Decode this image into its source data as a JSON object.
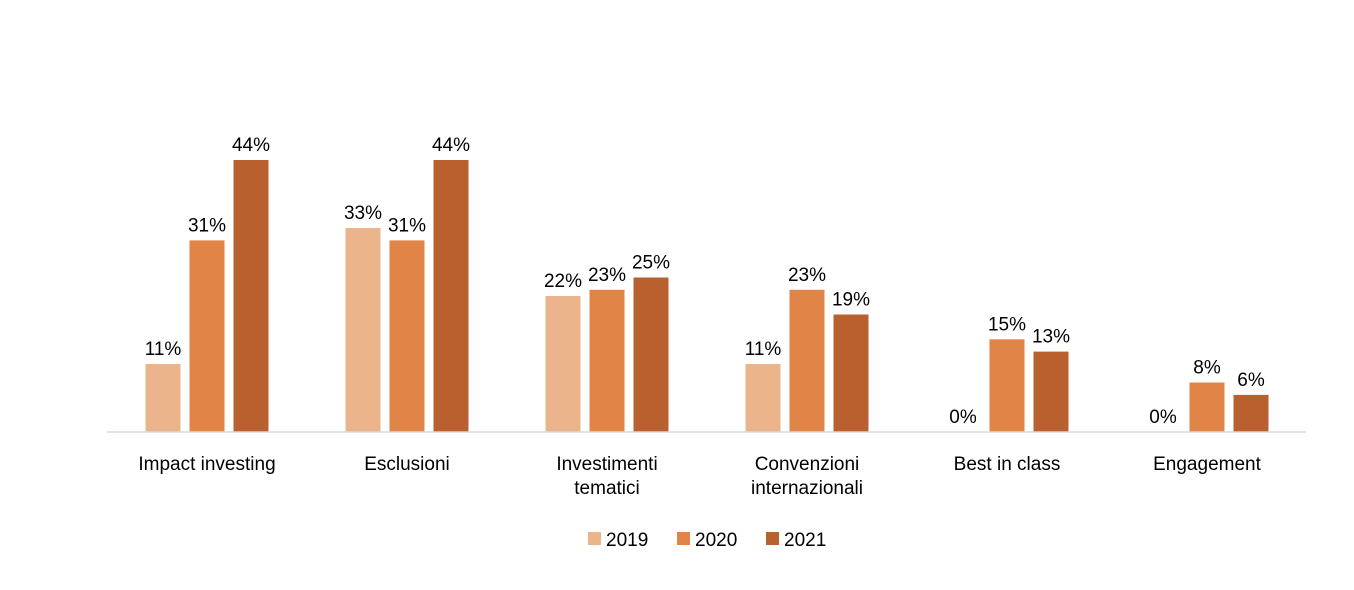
{
  "chart_data": {
    "type": "bar",
    "categories": [
      [
        "Impact investing"
      ],
      [
        "Esclusioni"
      ],
      [
        "Investimenti",
        "tematici"
      ],
      [
        "Convenzioni",
        "internazionali"
      ],
      [
        "Best in class"
      ],
      [
        "Engagement"
      ]
    ],
    "series": [
      {
        "name": "2019",
        "color": "#EBB48A",
        "values": [
          11,
          33,
          22,
          11,
          0,
          0
        ],
        "labels": [
          "11%",
          "33%",
          "22%",
          "11%",
          "0%",
          "0%"
        ]
      },
      {
        "name": "2020",
        "color": "#E08447",
        "values": [
          31,
          31,
          23,
          23,
          15,
          8
        ],
        "labels": [
          "31%",
          "31%",
          "23%",
          "23%",
          "15%",
          "8%"
        ]
      },
      {
        "name": "2021",
        "color": "#B8612E",
        "values": [
          44,
          44,
          25,
          19,
          13,
          6
        ],
        "labels": [
          "44%",
          "44%",
          "25%",
          "19%",
          "13%",
          "6%"
        ]
      }
    ],
    "ylim": [
      0,
      50
    ],
    "grid": false,
    "legend_position": "bottom",
    "title": "",
    "xlabel": "",
    "ylabel": ""
  }
}
